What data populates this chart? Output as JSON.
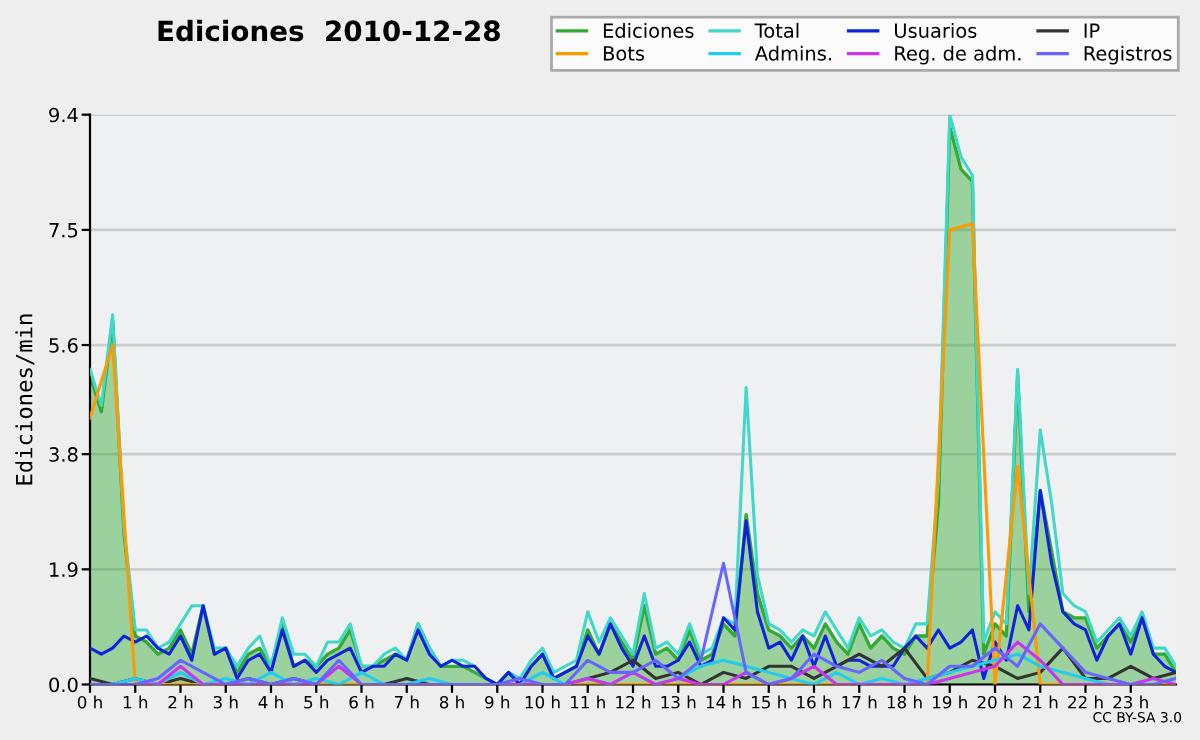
{
  "chart_data": {
    "type": "line",
    "title": "Ediciones  2010-12-28",
    "ylabel": "Ediciones/min",
    "xlim": [
      0,
      24
    ],
    "ylim": [
      0,
      9.4
    ],
    "xticks": [
      {
        "value": 0,
        "label": "0 h"
      },
      {
        "value": 1,
        "label": "1 h"
      },
      {
        "value": 2,
        "label": "2 h"
      },
      {
        "value": 3,
        "label": "3 h"
      },
      {
        "value": 4,
        "label": "4 h"
      },
      {
        "value": 5,
        "label": "5 h"
      },
      {
        "value": 6,
        "label": "6 h"
      },
      {
        "value": 7,
        "label": "7 h"
      },
      {
        "value": 8,
        "label": "8 h"
      },
      {
        "value": 9,
        "label": "9 h"
      },
      {
        "value": 10,
        "label": "10 h"
      },
      {
        "value": 11,
        "label": "11 h"
      },
      {
        "value": 12,
        "label": "12 h"
      },
      {
        "value": 13,
        "label": "13 h"
      },
      {
        "value": 14,
        "label": "14 h"
      },
      {
        "value": 15,
        "label": "15 h"
      },
      {
        "value": 16,
        "label": "16 h"
      },
      {
        "value": 17,
        "label": "17 h"
      },
      {
        "value": 18,
        "label": "18 h"
      },
      {
        "value": 19,
        "label": "19 h"
      },
      {
        "value": 20,
        "label": "20 h"
      },
      {
        "value": 21,
        "label": "21 h"
      },
      {
        "value": 22,
        "label": "22 h"
      },
      {
        "value": 23,
        "label": "23 h"
      }
    ],
    "yticks": [
      {
        "value": 0,
        "label": "0.0"
      },
      1.9,
      3.8,
      5.6,
      7.5,
      9.4
    ],
    "grid": "y",
    "legend": "top right",
    "marker": "none",
    "line_style": "solid",
    "annotations": [
      "CC BY-SA 3.0"
    ],
    "series": [
      {
        "name": "Ediciones",
        "type": "area",
        "color": "#33aa33",
        "x": [
          0,
          0.25,
          0.5,
          0.75,
          1,
          1.25,
          1.5,
          1.75,
          2,
          2.25,
          2.5,
          2.75,
          3,
          3.25,
          3.5,
          3.75,
          4,
          4.25,
          4.5,
          4.75,
          5,
          5.25,
          5.5,
          5.75,
          6,
          6.25,
          6.5,
          6.75,
          7,
          7.25,
          7.5,
          7.75,
          8,
          8.25,
          8.5,
          8.75,
          9,
          9.25,
          9.5,
          9.75,
          10,
          10.25,
          10.5,
          10.75,
          11,
          11.25,
          11.5,
          11.75,
          12,
          12.25,
          12.5,
          12.75,
          13,
          13.25,
          13.5,
          13.75,
          14,
          14.25,
          14.5,
          14.75,
          15,
          15.25,
          15.5,
          15.75,
          16,
          16.25,
          16.5,
          16.75,
          17,
          17.25,
          17.5,
          17.75,
          18,
          18.25,
          18.5,
          18.75,
          19,
          19.25,
          19.5,
          19.75,
          20,
          20.25,
          20.5,
          20.75,
          21,
          21.25,
          21.5,
          21.75,
          22,
          22.25,
          22.5,
          22.75,
          23,
          23.25,
          23.5,
          23.75,
          24
        ],
        "values": [
          5.1,
          4.5,
          6.0,
          2.5,
          0.8,
          0.7,
          0.5,
          0.6,
          0.9,
          0.5,
          1.3,
          0.5,
          0.6,
          0.2,
          0.5,
          0.6,
          0.3,
          1.0,
          0.3,
          0.4,
          0.3,
          0.5,
          0.6,
          0.9,
          0.3,
          0.3,
          0.4,
          0.5,
          0.4,
          1.0,
          0.6,
          0.3,
          0.3,
          0.3,
          0.2,
          0.1,
          0.0,
          0.2,
          0.0,
          0.3,
          0.5,
          0.1,
          0.2,
          0.3,
          0.9,
          0.5,
          1.0,
          0.7,
          0.4,
          1.3,
          0.5,
          0.6,
          0.4,
          0.9,
          0.4,
          0.5,
          1.0,
          0.8,
          2.8,
          1.5,
          0.9,
          0.8,
          0.6,
          0.8,
          0.6,
          1.0,
          0.7,
          0.5,
          1.0,
          0.6,
          0.8,
          0.6,
          0.5,
          0.8,
          0.8,
          3.0,
          9.2,
          8.5,
          8.3,
          0.5,
          1.0,
          0.8,
          5.1,
          1.2,
          3.2,
          2.2,
          1.2,
          1.1,
          1.1,
          0.6,
          0.8,
          1.0,
          0.7,
          1.1,
          0.5,
          0.5,
          0.2
        ]
      },
      {
        "name": "Total",
        "color": "#40d8c8",
        "x": [
          0,
          0.25,
          0.5,
          0.75,
          1,
          1.25,
          1.5,
          1.75,
          2,
          2.25,
          2.5,
          2.75,
          3,
          3.25,
          3.5,
          3.75,
          4,
          4.25,
          4.5,
          4.75,
          5,
          5.25,
          5.5,
          5.75,
          6,
          6.25,
          6.5,
          6.75,
          7,
          7.25,
          7.5,
          7.75,
          8,
          8.25,
          8.5,
          8.75,
          9,
          9.25,
          9.5,
          9.75,
          10,
          10.25,
          10.5,
          10.75,
          11,
          11.25,
          11.5,
          11.75,
          12,
          12.25,
          12.5,
          12.75,
          13,
          13.25,
          13.5,
          13.75,
          14,
          14.25,
          14.5,
          14.75,
          15,
          15.25,
          15.5,
          15.75,
          16,
          16.25,
          16.5,
          16.75,
          17,
          17.25,
          17.5,
          17.75,
          18,
          18.25,
          18.5,
          18.75,
          19,
          19.25,
          19.5,
          19.75,
          20,
          20.25,
          20.5,
          20.75,
          21,
          21.25,
          21.5,
          21.75,
          22,
          22.25,
          22.5,
          22.75,
          23,
          23.25,
          23.5,
          23.75,
          24
        ],
        "values": [
          5.2,
          4.6,
          6.1,
          2.6,
          0.9,
          0.9,
          0.6,
          0.7,
          1.0,
          1.3,
          1.3,
          0.6,
          0.6,
          0.3,
          0.6,
          0.8,
          0.3,
          1.1,
          0.5,
          0.5,
          0.3,
          0.7,
          0.7,
          1.0,
          0.3,
          0.3,
          0.5,
          0.6,
          0.4,
          1.0,
          0.6,
          0.3,
          0.4,
          0.4,
          0.3,
          0.1,
          0.0,
          0.2,
          0.1,
          0.4,
          0.6,
          0.2,
          0.3,
          0.4,
          1.2,
          0.7,
          1.1,
          0.8,
          0.5,
          1.5,
          0.6,
          0.7,
          0.5,
          1.0,
          0.5,
          0.6,
          1.1,
          1.0,
          4.9,
          1.8,
          1.0,
          0.9,
          0.7,
          0.9,
          0.8,
          1.2,
          0.9,
          0.6,
          1.1,
          0.8,
          0.9,
          0.7,
          0.6,
          1.0,
          1.0,
          3.4,
          9.4,
          8.7,
          8.4,
          0.7,
          1.2,
          1.0,
          5.2,
          1.5,
          4.2,
          3.0,
          1.5,
          1.3,
          1.2,
          0.7,
          0.9,
          1.1,
          0.8,
          1.2,
          0.6,
          0.6,
          0.3
        ]
      },
      {
        "name": "Usuarios",
        "color": "#1122dd",
        "x": [
          0,
          0.25,
          0.5,
          0.75,
          1,
          1.25,
          1.5,
          1.75,
          2,
          2.25,
          2.5,
          2.75,
          3,
          3.25,
          3.5,
          3.75,
          4,
          4.25,
          4.5,
          4.75,
          5,
          5.25,
          5.5,
          5.75,
          6,
          6.25,
          6.5,
          6.75,
          7,
          7.25,
          7.5,
          7.75,
          8,
          8.25,
          8.5,
          8.75,
          9,
          9.25,
          9.5,
          9.75,
          10,
          10.25,
          10.5,
          10.75,
          11,
          11.25,
          11.5,
          11.75,
          12,
          12.25,
          12.5,
          12.75,
          13,
          13.25,
          13.5,
          13.75,
          14,
          14.25,
          14.5,
          14.75,
          15,
          15.25,
          15.5,
          15.75,
          16,
          16.25,
          16.5,
          16.75,
          17,
          17.25,
          17.5,
          17.75,
          18,
          18.25,
          18.5,
          18.75,
          19,
          19.25,
          19.5,
          19.75,
          20,
          20.25,
          20.5,
          20.75,
          21,
          21.25,
          21.5,
          21.75,
          22,
          22.25,
          22.5,
          22.75,
          23,
          23.25,
          23.5,
          23.75,
          24
        ],
        "values": [
          0.6,
          0.5,
          0.6,
          0.8,
          0.7,
          0.8,
          0.6,
          0.5,
          0.8,
          0.4,
          1.3,
          0.5,
          0.6,
          0.1,
          0.4,
          0.5,
          0.2,
          0.9,
          0.3,
          0.4,
          0.2,
          0.4,
          0.5,
          0.6,
          0.2,
          0.3,
          0.3,
          0.5,
          0.4,
          0.9,
          0.5,
          0.3,
          0.4,
          0.3,
          0.3,
          0.1,
          0.0,
          0.2,
          0.0,
          0.3,
          0.5,
          0.1,
          0.2,
          0.3,
          0.8,
          0.5,
          1.0,
          0.6,
          0.3,
          0.8,
          0.3,
          0.3,
          0.4,
          0.7,
          0.3,
          0.4,
          1.1,
          0.9,
          2.7,
          1.2,
          0.6,
          0.7,
          0.4,
          0.8,
          0.3,
          0.8,
          0.3,
          0.4,
          0.4,
          0.3,
          0.3,
          0.3,
          0.6,
          0.8,
          0.6,
          0.9,
          0.6,
          0.7,
          0.9,
          0.1,
          0.7,
          0.4,
          1.3,
          0.9,
          3.2,
          2.0,
          1.2,
          1.0,
          0.9,
          0.4,
          0.8,
          1.0,
          0.5,
          1.1,
          0.5,
          0.3,
          0.2
        ]
      },
      {
        "name": "IP",
        "color": "#333333",
        "x": [
          0,
          0.5,
          1,
          1.5,
          2,
          2.5,
          3,
          3.5,
          4,
          4.5,
          5,
          5.5,
          6,
          6.5,
          7,
          7.5,
          8,
          8.5,
          9,
          9.5,
          10,
          10.5,
          11,
          11.5,
          12,
          12.5,
          13,
          13.5,
          14,
          14.5,
          15,
          15.5,
          16,
          16.5,
          17,
          17.5,
          18,
          18.5,
          19,
          19.5,
          20,
          20.5,
          21,
          21.5,
          22,
          22.5,
          23,
          23.5,
          24
        ],
        "values": [
          0.1,
          0.0,
          0.1,
          0.0,
          0.1,
          0.0,
          0.0,
          0.1,
          0.0,
          0.1,
          0.0,
          0.0,
          0.0,
          0.0,
          0.1,
          0.0,
          0.0,
          0.0,
          0.0,
          0.0,
          0.0,
          0.0,
          0.1,
          0.2,
          0.4,
          0.1,
          0.2,
          0.0,
          0.2,
          0.1,
          0.3,
          0.3,
          0.1,
          0.3,
          0.5,
          0.3,
          0.6,
          0.1,
          0.2,
          0.4,
          0.3,
          0.1,
          0.2,
          0.6,
          0.1,
          0.1,
          0.3,
          0.1,
          0.2
        ]
      },
      {
        "name": "Bots",
        "color": "#ff9900",
        "x": [
          0,
          0.5,
          1,
          1.5,
          2,
          2.5,
          3,
          3.5,
          4,
          4.5,
          5,
          5.5,
          6,
          6.5,
          7,
          7.5,
          8,
          8.5,
          9,
          9.5,
          10,
          10.5,
          11,
          11.5,
          12,
          12.5,
          13,
          13.5,
          14,
          14.5,
          15,
          15.5,
          16,
          16.5,
          17,
          17.5,
          18,
          18.5,
          19,
          19.5,
          20,
          20.5,
          21,
          21.5,
          22,
          22.5,
          23,
          23.5,
          24
        ],
        "values": [
          4.4,
          5.6,
          0,
          0,
          0,
          0,
          0,
          0,
          0,
          0,
          0,
          0,
          0,
          0,
          0,
          0,
          0,
          0,
          0,
          0,
          0,
          0,
          0,
          0,
          0,
          0,
          0,
          0,
          0,
          0,
          0,
          0,
          0,
          0,
          0,
          0,
          0,
          0,
          7.5,
          7.6,
          0,
          3.6,
          0,
          0,
          0,
          0,
          0,
          0,
          0
        ]
      },
      {
        "name": "Admins.",
        "color": "#22ccee",
        "x": [
          0,
          0.5,
          1,
          1.5,
          2,
          2.5,
          3,
          3.5,
          4,
          4.5,
          5,
          5.5,
          6,
          6.5,
          7,
          7.5,
          8,
          8.5,
          9,
          9.5,
          10,
          10.5,
          11,
          11.5,
          12,
          12.5,
          13,
          13.5,
          14,
          14.5,
          15,
          15.5,
          16,
          16.5,
          17,
          17.5,
          18,
          18.5,
          19,
          19.5,
          20,
          20.5,
          21,
          21.5,
          22,
          22.5,
          23
        ],
        "values": [
          0,
          0,
          0.1,
          0,
          0.2,
          0,
          0.1,
          0,
          0.2,
          0,
          0.1,
          0,
          0.2,
          0,
          0,
          0.1,
          0,
          0,
          0,
          0,
          0.2,
          0,
          0.1,
          0,
          0.2,
          0,
          0.1,
          0.3,
          0.4,
          0.3,
          0.2,
          0.1,
          0,
          0.2,
          0,
          0.1,
          0,
          0.1,
          0.2,
          0.3,
          0.4,
          0.5,
          0.3,
          0.2,
          0.1,
          0,
          0
        ]
      },
      {
        "name": "Reg. de adm.",
        "color": "#cc33ee",
        "x": [
          0,
          0.5,
          1,
          1.5,
          2,
          2.5,
          3,
          3.5,
          4,
          4.5,
          5,
          5.5,
          6,
          6.5,
          7,
          7.5,
          8,
          8.5,
          9,
          9.5,
          10,
          10.5,
          11,
          11.5,
          12,
          12.5,
          13,
          13.5,
          14,
          14.5,
          15,
          15.5,
          16,
          16.5,
          17,
          17.5,
          18,
          18.5,
          19,
          19.5,
          20,
          20.5,
          21,
          21.5,
          22,
          22.5,
          23,
          23.5,
          24
        ],
        "values": [
          0,
          0,
          0,
          0,
          0.3,
          0,
          0,
          0,
          0,
          0,
          0,
          0.3,
          0,
          0,
          0,
          0,
          0,
          0,
          0,
          0,
          0,
          0,
          0.1,
          0,
          0.2,
          0,
          0.1,
          0,
          0,
          0.2,
          0,
          0.1,
          0.3,
          0,
          0,
          0,
          0,
          0,
          0.1,
          0.2,
          0.3,
          0.7,
          0.4,
          0,
          0,
          0,
          0,
          0.1,
          0
        ]
      },
      {
        "name": "Registros",
        "color": "#6666ff",
        "x": [
          0,
          0.5,
          1,
          1.5,
          2,
          2.5,
          3,
          3.5,
          4,
          4.5,
          5,
          5.5,
          6,
          6.5,
          7,
          7.5,
          8,
          8.5,
          9,
          9.5,
          10,
          10.5,
          11,
          11.5,
          12,
          12.5,
          13,
          13.5,
          14,
          14.5,
          15,
          15.5,
          16,
          16.5,
          17,
          17.5,
          18,
          18.5,
          19,
          19.5,
          20,
          20.5,
          21,
          21.5,
          22,
          22.5,
          23,
          23.5,
          24
        ],
        "values": [
          0,
          0,
          0,
          0.1,
          0.4,
          0.2,
          0,
          0.1,
          0,
          0.1,
          0,
          0.4,
          0,
          0,
          0,
          0,
          0,
          0,
          0,
          0.1,
          0,
          0,
          0.4,
          0.2,
          0.2,
          0.4,
          0.1,
          0.4,
          2.0,
          0.2,
          0,
          0.1,
          0.5,
          0.3,
          0.2,
          0.4,
          0.1,
          0,
          0.3,
          0.3,
          0.6,
          0.3,
          1.0,
          0.6,
          0.2,
          0.1,
          0,
          0,
          0.1
        ]
      }
    ]
  }
}
